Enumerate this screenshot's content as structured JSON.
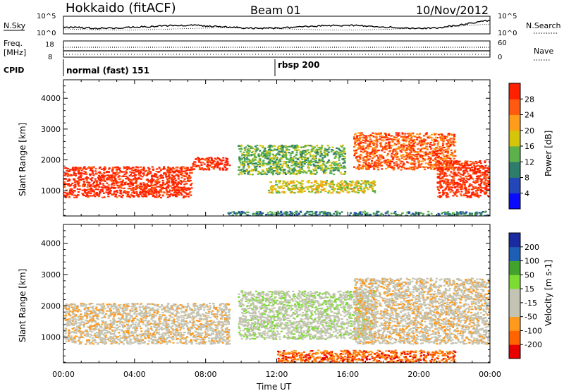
{
  "header": {
    "title": "Hokkaido (fitACF)",
    "beam": "Beam 01",
    "date": "10/Nov/2012"
  },
  "noise_panel": {
    "left_label": "N.Sky",
    "right_label": "N.Search",
    "left_ticks": [
      "10^5",
      "10^0"
    ],
    "right_ticks": [
      "10^5",
      "10^0"
    ]
  },
  "freq_panel": {
    "left_label_1": "Freq.",
    "left_label_2": "[MHz]",
    "right_label": "Nave",
    "left_ticks": [
      "8",
      "18"
    ],
    "right_ticks": [
      "60",
      "0"
    ]
  },
  "cpid_panel": {
    "label": "CPID",
    "modes": [
      {
        "name": "normal (fast) 151",
        "start_hour": 0.0
      },
      {
        "name": "rbsp 200",
        "start_hour": 12.0
      }
    ]
  },
  "colors": {
    "power": [
      "#0a0aff",
      "#2346b8",
      "#2d7d6a",
      "#5db14a",
      "#d4c40a",
      "#ff9c1a",
      "#ff5a10",
      "#ff2000"
    ],
    "velocity": [
      "#e80000",
      "#ff6400",
      "#ff9a1c",
      "#c4c4b4",
      "#c4c4b4",
      "#7ddc32",
      "#43a12d",
      "#1e5fb5",
      "#1a2aa0"
    ]
  },
  "chart_data": [
    {
      "type": "heatmap",
      "title": "",
      "xlabel": "Time UT",
      "ylabel": "Slant Range [km]",
      "x_range_hours": [
        0,
        24
      ],
      "xticks": [
        "00:00",
        "04:00",
        "08:00",
        "12:00",
        "16:00",
        "20:00",
        "00:00"
      ],
      "ylim": [
        180,
        4600
      ],
      "yticks": [
        "1000",
        "2000",
        "3000",
        "4000"
      ],
      "colorbar": {
        "label": "Power [dB]",
        "range": [
          0,
          30
        ],
        "ticks": [
          "4",
          "8",
          "12",
          "16",
          "20",
          "24",
          "28"
        ]
      },
      "echo_regions": [
        {
          "t0": 0.0,
          "t1": 7.2,
          "r0": 800,
          "r1": 1800,
          "level": 7
        },
        {
          "t0": 7.2,
          "t1": 9.3,
          "r0": 1700,
          "r1": 2100,
          "level": 7
        },
        {
          "t0": 9.8,
          "t1": 15.8,
          "r0": 1550,
          "r1": 2500,
          "level": 3
        },
        {
          "t0": 11.5,
          "t1": 17.5,
          "r0": 950,
          "r1": 1350,
          "level": 4
        },
        {
          "t0": 16.3,
          "t1": 22.0,
          "r0": 1700,
          "r1": 2900,
          "level": 6
        },
        {
          "t0": 21.0,
          "t1": 24.0,
          "r0": 800,
          "r1": 2000,
          "level": 7
        },
        {
          "t0": 9.0,
          "t1": 24.0,
          "r0": 180,
          "r1": 350,
          "level": 2
        }
      ]
    },
    {
      "type": "heatmap",
      "title": "",
      "xlabel": "Time UT",
      "ylabel": "Slant Range [km]",
      "x_range_hours": [
        0,
        24
      ],
      "xticks": [
        "00:00",
        "04:00",
        "08:00",
        "12:00",
        "16:00",
        "20:00",
        "00:00"
      ],
      "ylim": [
        180,
        4600
      ],
      "yticks": [
        "1000",
        "2000",
        "3000",
        "4000"
      ],
      "colorbar": {
        "label": "Velocity [m s-1]",
        "range": [
          -250,
          250
        ],
        "ticks": [
          "-200",
          "-100",
          "-50",
          "-15",
          "15",
          "50",
          "100",
          "200"
        ]
      },
      "echo_regions": [
        {
          "t0": 0.0,
          "t1": 9.3,
          "r0": 800,
          "r1": 2100,
          "level": 3
        },
        {
          "t0": 9.8,
          "t1": 17.5,
          "r0": 950,
          "r1": 2500,
          "level": 4
        },
        {
          "t0": 16.3,
          "t1": 24.0,
          "r0": 800,
          "r1": 2900,
          "level": 3
        },
        {
          "t0": 12.0,
          "t1": 22.0,
          "r0": 180,
          "r1": 600,
          "level": 1
        }
      ]
    }
  ]
}
